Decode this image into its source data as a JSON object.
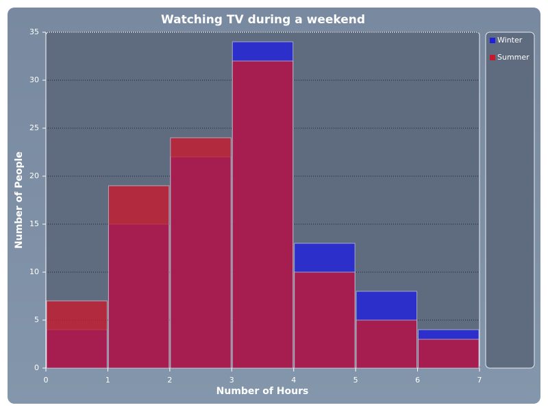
{
  "chart_data": {
    "type": "histogram",
    "title": "Watching TV during a weekend",
    "x_label": "Number of Hours",
    "y_label": "Number of People",
    "bins": [
      0,
      1,
      2,
      3,
      4,
      5,
      6,
      7
    ],
    "series": [
      {
        "name": "Winter",
        "color": "#1f1fe0",
        "values": [
          4,
          15,
          22,
          34,
          13,
          8,
          4
        ]
      },
      {
        "name": "Summer",
        "color": "#c8182c",
        "values": [
          7,
          19,
          24,
          32,
          10,
          5,
          3
        ]
      }
    ],
    "xlim": [
      0,
      7
    ],
    "xticks": [
      0,
      1,
      2,
      3,
      4,
      5,
      6,
      7
    ],
    "ylim": [
      0,
      35
    ],
    "yticks": [
      0,
      5,
      10,
      15,
      20,
      25,
      30,
      35
    ],
    "grid": true,
    "legend": "right"
  }
}
